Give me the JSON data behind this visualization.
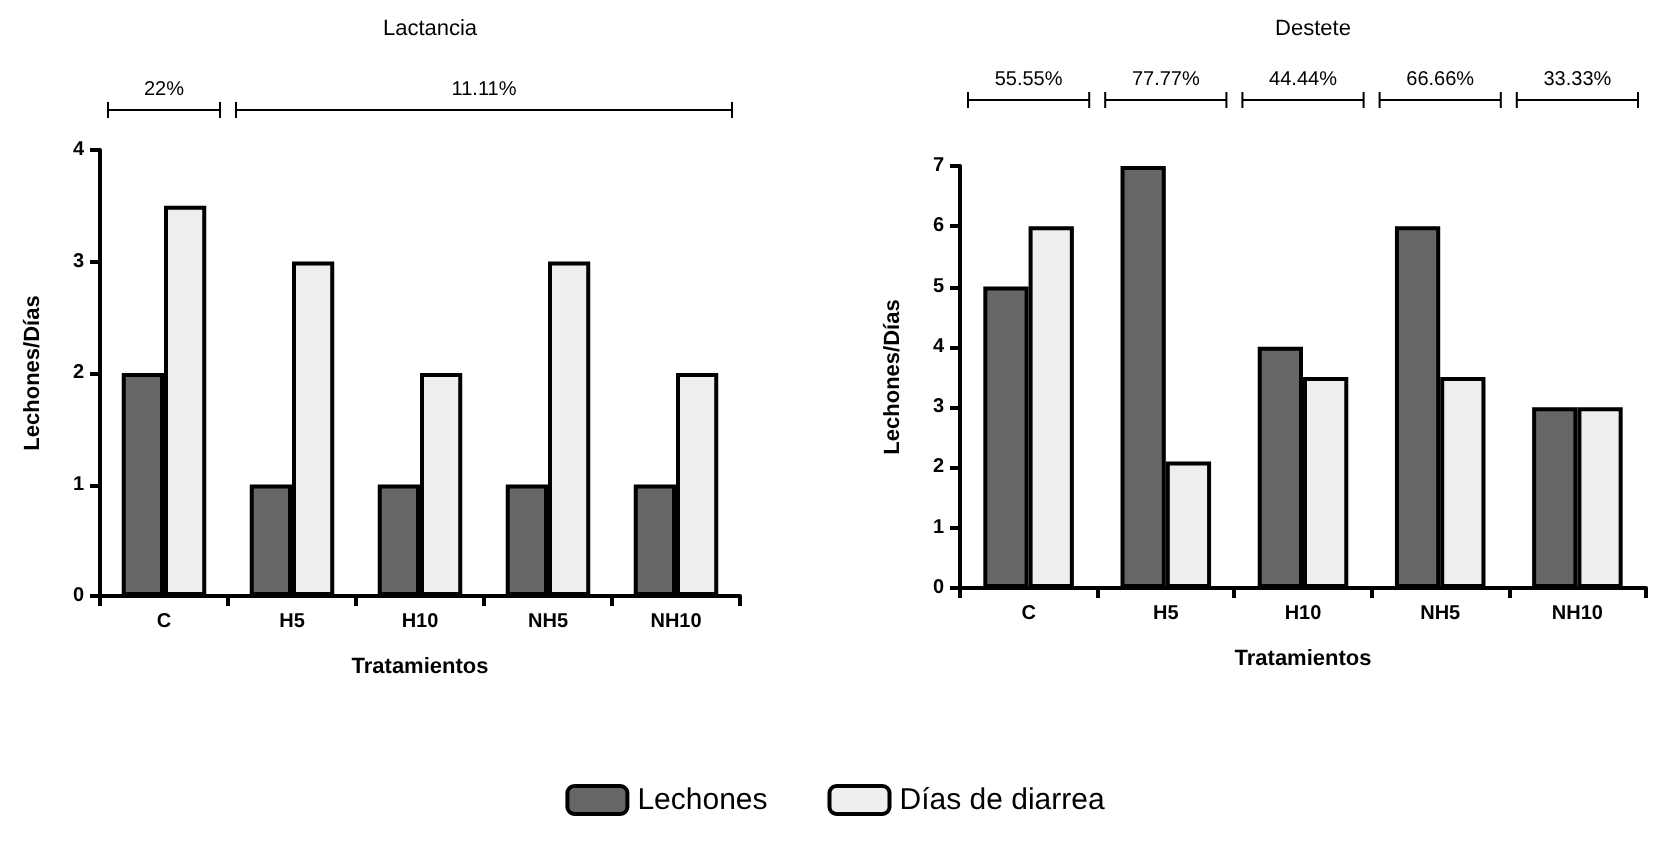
{
  "chart_data": [
    {
      "type": "bar",
      "title": "Lactancia",
      "xlabel": "Tratamientos",
      "ylabel": "Lechones/Días",
      "categories": [
        "C",
        "H5",
        "H10",
        "NH5",
        "NH10"
      ],
      "series": [
        {
          "name": "Lechones",
          "color": "#666666",
          "values": [
            2,
            1,
            1,
            1,
            1
          ]
        },
        {
          "name": "Días de diarrea",
          "color": "#eeeeee",
          "values": [
            3.5,
            3,
            2,
            3,
            2
          ]
        }
      ],
      "ylim": [
        0,
        4
      ],
      "yticks": [
        0,
        1,
        2,
        3,
        4
      ],
      "grid": false,
      "legend": "bottom",
      "annotations": [
        "22%",
        "11.11%"
      ]
    },
    {
      "type": "bar",
      "title": "Destete",
      "xlabel": "Tratamientos",
      "ylabel": "Lechones/Días",
      "categories": [
        "C",
        "H5",
        "H10",
        "NH5",
        "NH10"
      ],
      "series": [
        {
          "color": "#666666",
          "values": [
            5,
            7,
            4,
            6,
            3
          ]
        },
        {
          "color": "#eeeeee",
          "values": [
            6,
            2.1,
            3.5,
            3.5,
            3
          ]
        }
      ],
      "ylim": [
        0,
        7
      ],
      "yticks": [
        0,
        1,
        2,
        3,
        4,
        5,
        6,
        7
      ],
      "grid": false,
      "legend": false,
      "annotations": [
        "55.55%",
        "77.77%",
        "44.44%",
        "66.66%",
        "33.33%"
      ]
    }
  ]
}
